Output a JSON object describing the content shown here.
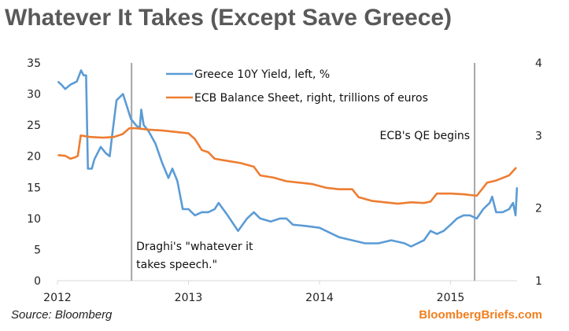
{
  "chart_data": {
    "type": "line",
    "title": "Whatever It Takes (Except Save Greece)",
    "source": "Source: Bloomberg",
    "brand": "BloombergBriefs.com",
    "x_ticks": [
      "2012",
      "2013",
      "2014",
      "2015"
    ],
    "y_left": {
      "lim": [
        0,
        35
      ],
      "ticks": [
        "0",
        "5",
        "10",
        "15",
        "20",
        "25",
        "30",
        "35"
      ]
    },
    "y_right": {
      "lim": [
        1,
        4
      ],
      "ticks": [
        "1",
        "2",
        "3",
        "4"
      ]
    },
    "grid": false,
    "legend_position": "top-center",
    "annotations": [
      {
        "date": "2012-07-26",
        "lines": [
          "Draghi's \"whatever it",
          "takes speech.\""
        ]
      },
      {
        "date": "2015-03-09",
        "lines": [
          "ECB's QE begins"
        ]
      }
    ],
    "series": [
      {
        "name": "Greece 10Y Yield, left, %",
        "axis": "left",
        "color": "#5b9bd5",
        "x": [
          "2012-01-02",
          "2012-01-12",
          "2012-01-23",
          "2012-02-06",
          "2012-02-24",
          "2012-03-07",
          "2012-03-14",
          "2012-03-21",
          "2012-03-26",
          "2012-04-06",
          "2012-04-13",
          "2012-05-01",
          "2012-05-15",
          "2012-05-26",
          "2012-06-03",
          "2012-06-14",
          "2012-07-02",
          "2012-07-13",
          "2012-07-24",
          "2012-08-07",
          "2012-08-18",
          "2012-08-22",
          "2012-08-29",
          "2012-09-12",
          "2012-10-01",
          "2012-10-19",
          "2012-11-06",
          "2012-11-17",
          "2012-12-01",
          "2012-12-16",
          "2013-01-01",
          "2013-01-19",
          "2013-02-07",
          "2013-02-25",
          "2013-03-15",
          "2013-03-26",
          "2013-04-20",
          "2013-05-19",
          "2013-06-13",
          "2013-07-02",
          "2013-07-20",
          "2013-08-18",
          "2013-09-13",
          "2013-10-01",
          "2013-10-19",
          "2013-11-24",
          "2014-01-01",
          "2014-01-19",
          "2014-02-24",
          "2014-04-02",
          "2014-05-08",
          "2014-06-14",
          "2014-07-20",
          "2014-08-26",
          "2014-09-13",
          "2014-10-19",
          "2014-11-06",
          "2014-11-24",
          "2014-12-13",
          "2015-01-01",
          "2015-01-19",
          "2015-02-06",
          "2015-02-24",
          "2015-03-15",
          "2015-04-02",
          "2015-04-20",
          "2015-04-27",
          "2015-05-08",
          "2015-05-26",
          "2015-06-13",
          "2015-06-24",
          "2015-07-01",
          "2015-07-05"
        ],
        "values": [
          32,
          31.5,
          30.8,
          31.5,
          32,
          33.8,
          33,
          33,
          18,
          18,
          19.5,
          21.5,
          20.5,
          20,
          24,
          29,
          30,
          28,
          26,
          25,
          24.5,
          27.5,
          25,
          24,
          22,
          19,
          16.5,
          18,
          16,
          11.5,
          11.5,
          10.5,
          11,
          11,
          11.5,
          12.5,
          10.5,
          8,
          10,
          11,
          10,
          9.5,
          10,
          10,
          9,
          8.8,
          8.5,
          8,
          7,
          6.5,
          6,
          6,
          6.5,
          6,
          5.5,
          6.5,
          8,
          7.5,
          8,
          9,
          10,
          10.5,
          10.5,
          10,
          11.5,
          12.5,
          13.5,
          11,
          11,
          11.5,
          12.5,
          10.5,
          15
        ]
      },
      {
        "name": "ECB Balance Sheet, right, trillions of euros",
        "axis": "right",
        "color": "#ed7d31",
        "x": [
          "2012-01-02",
          "2012-01-23",
          "2012-02-06",
          "2012-02-20",
          "2012-02-27",
          "2012-03-06",
          "2012-04-01",
          "2012-05-08",
          "2012-06-07",
          "2012-07-01",
          "2012-07-20",
          "2012-08-07",
          "2012-09-12",
          "2012-10-19",
          "2012-11-24",
          "2013-01-01",
          "2013-01-19",
          "2013-02-07",
          "2013-02-25",
          "2013-03-15",
          "2013-04-20",
          "2013-05-26",
          "2013-07-02",
          "2013-07-20",
          "2013-08-26",
          "2013-10-01",
          "2013-11-06",
          "2013-12-13",
          "2014-01-19",
          "2014-02-24",
          "2014-04-02",
          "2014-04-20",
          "2014-05-26",
          "2014-07-02",
          "2014-08-07",
          "2014-09-13",
          "2014-10-19",
          "2014-11-06",
          "2014-11-24",
          "2015-01-01",
          "2015-02-06",
          "2015-03-15",
          "2015-04-13",
          "2015-05-08",
          "2015-06-13",
          "2015-07-03"
        ],
        "values": [
          2.73,
          2.72,
          2.68,
          2.7,
          2.72,
          3.0,
          2.98,
          2.97,
          2.98,
          3.02,
          3.1,
          3.1,
          3.08,
          3.07,
          3.05,
          3.03,
          2.95,
          2.8,
          2.77,
          2.68,
          2.65,
          2.62,
          2.57,
          2.45,
          2.42,
          2.37,
          2.35,
          2.33,
          2.28,
          2.26,
          2.26,
          2.15,
          2.1,
          2.08,
          2.06,
          2.08,
          2.07,
          2.09,
          2.2,
          2.2,
          2.19,
          2.17,
          2.35,
          2.38,
          2.45,
          2.56
        ]
      }
    ]
  }
}
